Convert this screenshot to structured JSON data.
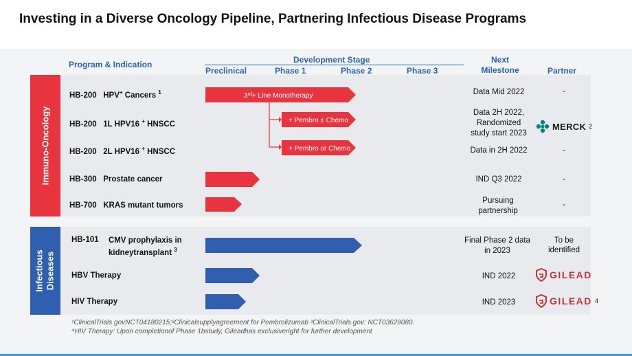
{
  "title": "Investing in a Diverse Oncology Pipeline, Partnering Infectious Disease Programs",
  "headers": {
    "program": "Program & Indication",
    "development_stage": "Development Stage",
    "preclinical": "Preclinical",
    "phase1": "Phase 1",
    "phase2": "Phase 2",
    "phase3": "Phase 3",
    "next_milestone": "Next Milestone",
    "partner": "Partner"
  },
  "sections": {
    "immuno": "Immuno-Oncology",
    "infectious": "Infectious Diseases"
  },
  "rows": [
    {
      "code": "HB-200",
      "indication": "HPV",
      "sup1": "+",
      "indication_rest": " Cancers ",
      "note": "1",
      "bar_label": "3rd+ Line Monotherapy",
      "milestone": "Data Mid 2022",
      "partner": "-",
      "progress": "phase2",
      "color": "#e8343f"
    },
    {
      "code": "HB-200",
      "indication": "1L HPV16 ",
      "sup1": "+",
      "indication_rest": " HNSCC",
      "note": "",
      "bar_label": "+ Pembro ± Chemo",
      "milestone": "Data 2H 2022, Randomized study start 2023",
      "partner": "MERCK",
      "partner_note": "2",
      "progress": "phase2",
      "color": "#e8343f"
    },
    {
      "code": "HB-200",
      "indication": "2L HPV16 ",
      "sup1": "+",
      "indication_rest": " HNSCC",
      "note": "",
      "bar_label": "+ Pembro or Chemo",
      "milestone": "Data in 2H 2022",
      "partner": "-",
      "progress": "phase2",
      "color": "#e8343f"
    },
    {
      "code": "HB-300",
      "indication": "Prostate  cancer",
      "milestone": "IND Q3 2022",
      "partner": "-",
      "progress": "preclinical",
      "color": "#e8343f"
    },
    {
      "code": "HB-700",
      "indication": "KRAS mutant tumors",
      "milestone": "Pursuing partnership",
      "partner": "-",
      "progress": "preclinical",
      "color": "#e8343f"
    },
    {
      "code": "HB-101",
      "indication": "CMV prophylaxis in kidneytransplant",
      "note": "3",
      "milestone": "Final Phase 2 data in 2023",
      "partner": "To be identified",
      "progress": "phase2",
      "color": "#2f5fae"
    },
    {
      "code": "HBV Therapy",
      "milestone": "IND 2022",
      "partner": "GILEAD",
      "progress": "preclinical",
      "color": "#2f5fae"
    },
    {
      "code": "HIV Therapy",
      "milestone": "IND 2023",
      "partner": "GILEAD",
      "partner_note": "4",
      "progress": "preclinical",
      "color": "#2f5fae"
    }
  ],
  "bar_labels": {
    "mono": "3rd+ Line Monotherapy",
    "mono_sup": "rd",
    "pembro_chemo": "+ Pembro ± Chemo",
    "pembro_or_chemo": "+ Pembro or Chemo"
  },
  "footnotes": {
    "line1": "¹ClinicalTrials.govNCT04180215;²Clinicalsupplyagreement for Pembrolizumab ³ClinicalTrials.gov: NCT03629080.",
    "line2": "⁴HIV Therapy: Upon completionof Phase 1bstudy, Gileadhas exclusiveright for further development"
  },
  "colors": {
    "accent_red": "#e8343f",
    "accent_blue": "#2f5fae",
    "header_blue": "#2c62b4",
    "gilead_red": "#c8333a",
    "merck_teal": "#00857c"
  }
}
